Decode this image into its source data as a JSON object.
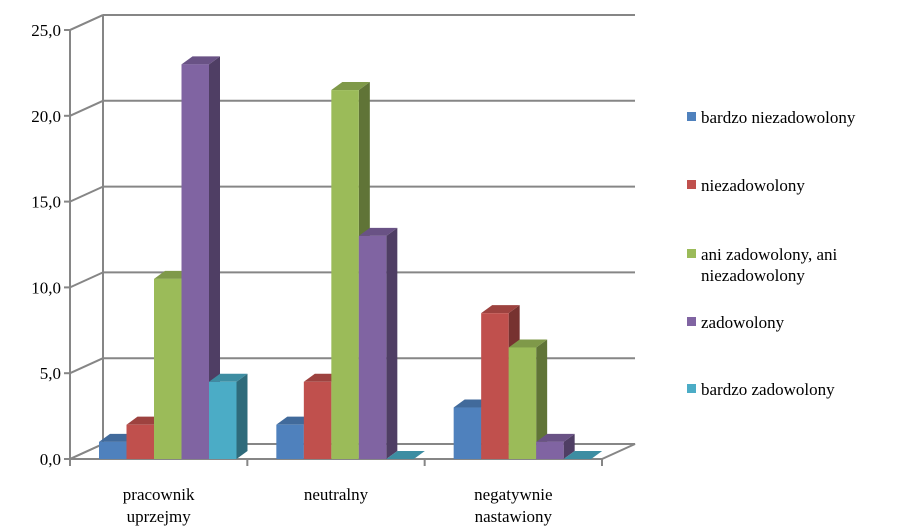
{
  "chart_data": {
    "type": "bar",
    "title": "",
    "xlabel": "",
    "ylabel": "",
    "ylim": [
      0,
      25
    ],
    "yticks": [
      "0,0",
      "5,0",
      "10,0",
      "15,0",
      "20,0",
      "25,0"
    ],
    "grid": true,
    "legend_position": "right",
    "categories": [
      [
        "pracownik",
        "uprzejmy"
      ],
      [
        "neutralny"
      ],
      [
        "negatywnie",
        "nastawiony"
      ]
    ],
    "series": [
      {
        "name": "bardzo niezadowolony",
        "name_lines": [
          "bardzo niezadowolony"
        ],
        "color": "#4f81bd",
        "values": [
          1.0,
          2.0,
          3.0
        ]
      },
      {
        "name": "niezadowolony",
        "name_lines": [
          "niezadowolony"
        ],
        "color": "#c0504d",
        "values": [
          2.0,
          4.5,
          8.5
        ]
      },
      {
        "name": "ani zadowolony, ani niezadowolony",
        "name_lines": [
          "ani zadowolony, ani",
          "niezadowolony"
        ],
        "color": "#9bbb59",
        "values": [
          10.5,
          21.5,
          6.5
        ]
      },
      {
        "name": "zadowolony",
        "name_lines": [
          "zadowolony"
        ],
        "color": "#8064a2",
        "values": [
          23.0,
          13.0,
          1.0
        ]
      },
      {
        "name": "bardzo zadowolony",
        "name_lines": [
          "bardzo zadowolony"
        ],
        "color": "#4bacc6",
        "values": [
          4.5,
          0.0,
          0.0
        ]
      }
    ]
  }
}
